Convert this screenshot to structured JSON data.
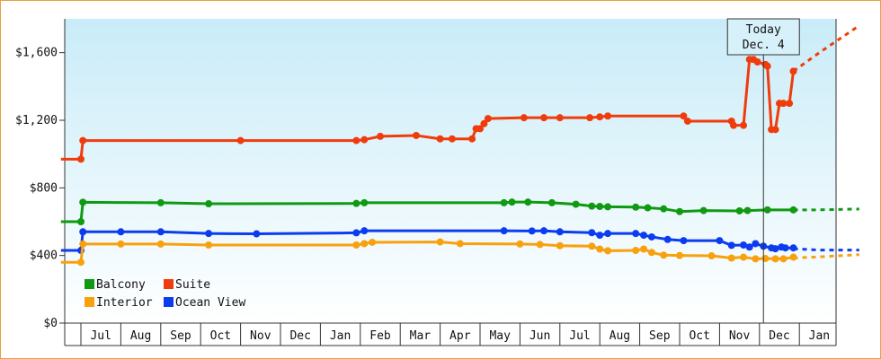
{
  "chart_data": {
    "type": "line",
    "title": "",
    "xlabel": "",
    "ylabel": "",
    "ylim": [
      0,
      1800
    ],
    "y_ticks": [
      {
        "value": 0,
        "label": "$0"
      },
      {
        "value": 400,
        "label": "$400"
      },
      {
        "value": 800,
        "label": "$800"
      },
      {
        "value": 1200,
        "label": "$1,200"
      },
      {
        "value": 1600,
        "label": "$1,600"
      }
    ],
    "x_ticks": [
      "Jul",
      "Aug",
      "Sep",
      "Oct",
      "Nov",
      "Dec",
      "Jan",
      "Feb",
      "Mar",
      "Apr",
      "May",
      "Jun",
      "Jul",
      "Aug",
      "Sep",
      "Oct",
      "Nov",
      "Dec",
      "Jan"
    ],
    "today": {
      "line1": "Today",
      "line2": "Dec. 4",
      "x": 17.1
    },
    "legend_position": "bottom-left",
    "grid": false,
    "background_gradient": [
      "#c9ecf8",
      "#ffffff"
    ],
    "series": [
      {
        "name": "Suite",
        "color": "#f03c0c",
        "points": [
          [
            -0.5,
            970
          ],
          [
            0,
            970
          ],
          [
            0.05,
            1080
          ],
          [
            4,
            1080
          ],
          [
            6.9,
            1080
          ],
          [
            7.1,
            1085
          ],
          [
            7.5,
            1105
          ],
          [
            8.4,
            1110
          ],
          [
            9,
            1090
          ],
          [
            9.3,
            1090
          ],
          [
            9.8,
            1090
          ],
          [
            9.9,
            1150
          ],
          [
            10,
            1150
          ],
          [
            10.1,
            1180
          ],
          [
            10.2,
            1210
          ],
          [
            11.1,
            1215
          ],
          [
            11.6,
            1215
          ],
          [
            12,
            1215
          ],
          [
            12.75,
            1215
          ],
          [
            13,
            1220
          ],
          [
            13.2,
            1225
          ],
          [
            15.1,
            1225
          ],
          [
            15.2,
            1195
          ],
          [
            16.3,
            1195
          ],
          [
            16.35,
            1170
          ],
          [
            16.6,
            1170
          ],
          [
            16.75,
            1560
          ],
          [
            16.85,
            1560
          ],
          [
            16.95,
            1545
          ],
          [
            17.15,
            1530
          ],
          [
            17.2,
            1520
          ],
          [
            17.3,
            1145
          ],
          [
            17.4,
            1145
          ],
          [
            17.5,
            1300
          ],
          [
            17.6,
            1300
          ],
          [
            17.75,
            1300
          ],
          [
            17.85,
            1490
          ]
        ],
        "forecast": [
          [
            17.85,
            1490
          ],
          [
            18.5,
            1600
          ],
          [
            19.5,
            1760
          ]
        ]
      },
      {
        "name": "Balcony",
        "color": "#0f9a12",
        "points": [
          [
            -0.5,
            600
          ],
          [
            0,
            600
          ],
          [
            0.05,
            715
          ],
          [
            2,
            712
          ],
          [
            3.2,
            706
          ],
          [
            6.9,
            708
          ],
          [
            7.1,
            712
          ],
          [
            10.6,
            712
          ],
          [
            10.8,
            716
          ],
          [
            11.2,
            716
          ],
          [
            11.8,
            712
          ],
          [
            12.4,
            703
          ],
          [
            12.8,
            692
          ],
          [
            13,
            690
          ],
          [
            13.2,
            688
          ],
          [
            13.9,
            686
          ],
          [
            14.2,
            682
          ],
          [
            14.6,
            676
          ],
          [
            15,
            660
          ],
          [
            15.6,
            666
          ],
          [
            16.5,
            664
          ],
          [
            16.7,
            666
          ],
          [
            17.2,
            670
          ],
          [
            17.85,
            670
          ]
        ],
        "forecast": [
          [
            17.85,
            670
          ],
          [
            18.5,
            670
          ],
          [
            19.5,
            675
          ]
        ]
      },
      {
        "name": "Ocean View",
        "color": "#0c3cf0",
        "points": [
          [
            -0.5,
            430
          ],
          [
            0,
            430
          ],
          [
            0.05,
            540
          ],
          [
            1,
            540
          ],
          [
            2,
            540
          ],
          [
            3.2,
            530
          ],
          [
            4.4,
            528
          ],
          [
            6.9,
            534
          ],
          [
            7.1,
            546
          ],
          [
            10.6,
            546
          ],
          [
            11.3,
            545
          ],
          [
            11.6,
            546
          ],
          [
            12,
            540
          ],
          [
            12.8,
            535
          ],
          [
            13,
            520
          ],
          [
            13.2,
            530
          ],
          [
            13.9,
            530
          ],
          [
            14.1,
            520
          ],
          [
            14.3,
            510
          ],
          [
            14.7,
            495
          ],
          [
            15.1,
            488
          ],
          [
            16,
            488
          ],
          [
            16.3,
            460
          ],
          [
            16.6,
            462
          ],
          [
            16.75,
            450
          ],
          [
            16.9,
            470
          ],
          [
            17.1,
            455
          ],
          [
            17.3,
            445
          ],
          [
            17.4,
            440
          ],
          [
            17.55,
            450
          ],
          [
            17.65,
            445
          ],
          [
            17.85,
            445
          ]
        ],
        "forecast": [
          [
            17.85,
            440
          ],
          [
            18.5,
            432
          ],
          [
            19.5,
            432
          ]
        ]
      },
      {
        "name": "Interior",
        "color": "#f8a10c",
        "points": [
          [
            -0.5,
            360
          ],
          [
            0,
            360
          ],
          [
            0.05,
            468
          ],
          [
            1,
            468
          ],
          [
            2,
            468
          ],
          [
            3.2,
            462
          ],
          [
            6.9,
            462
          ],
          [
            7.1,
            470
          ],
          [
            7.3,
            478
          ],
          [
            9,
            480
          ],
          [
            9.5,
            470
          ],
          [
            11,
            468
          ],
          [
            11.5,
            465
          ],
          [
            12,
            458
          ],
          [
            12.8,
            455
          ],
          [
            13,
            438
          ],
          [
            13.2,
            428
          ],
          [
            13.9,
            430
          ],
          [
            14.1,
            438
          ],
          [
            14.3,
            418
          ],
          [
            14.6,
            402
          ],
          [
            15,
            400
          ],
          [
            15.8,
            398
          ],
          [
            16.3,
            385
          ],
          [
            16.6,
            390
          ],
          [
            16.9,
            380
          ],
          [
            17.15,
            382
          ],
          [
            17.4,
            380
          ],
          [
            17.6,
            380
          ],
          [
            17.85,
            390
          ]
        ],
        "forecast": [
          [
            17.85,
            385
          ],
          [
            18.5,
            392
          ],
          [
            19.5,
            405
          ]
        ]
      }
    ],
    "legend": [
      {
        "name": "Balcony",
        "color": "#0f9a12"
      },
      {
        "name": "Suite",
        "color": "#f03c0c"
      },
      {
        "name": "Interior",
        "color": "#f8a10c"
      },
      {
        "name": "Ocean View",
        "color": "#0c3cf0"
      }
    ]
  }
}
